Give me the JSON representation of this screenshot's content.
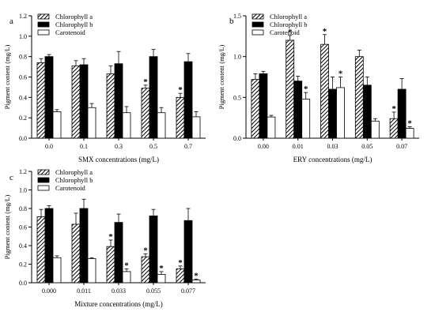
{
  "chart_data": [
    {
      "type": "bar",
      "panel_label": "a",
      "categories": [
        "0.0",
        "0.1",
        "0.3",
        "0.5",
        "0.7"
      ],
      "xlabel": "SMX concentrations (mg/L)",
      "ylabel": "Pigment content (mg/L)",
      "ylim": [
        0,
        1.2
      ],
      "yticks": [
        "0.0",
        "0.2",
        "0.4",
        "0.6",
        "0.8",
        "1.0",
        "1.2"
      ],
      "legend": "top-left",
      "series": [
        {
          "name": "Chlorophyll a",
          "pattern": "hatched",
          "values": [
            0.74,
            0.71,
            0.63,
            0.49,
            0.4
          ],
          "errors": [
            0.04,
            0.05,
            0.08,
            0.03,
            0.04
          ],
          "significant": [
            false,
            false,
            false,
            true,
            true
          ]
        },
        {
          "name": "Chlorophyll b",
          "pattern": "solid",
          "values": [
            0.8,
            0.72,
            0.73,
            0.8,
            0.75
          ],
          "errors": [
            0.02,
            0.06,
            0.12,
            0.07,
            0.08
          ],
          "significant": [
            false,
            false,
            false,
            false,
            false
          ]
        },
        {
          "name": "Carotenoid",
          "pattern": "open",
          "values": [
            0.26,
            0.3,
            0.25,
            0.25,
            0.21
          ],
          "errors": [
            0.02,
            0.04,
            0.06,
            0.05,
            0.05
          ],
          "significant": [
            false,
            false,
            false,
            false,
            false
          ]
        }
      ],
      "significance_marker": "*"
    },
    {
      "type": "bar",
      "panel_label": "b",
      "categories": [
        "0.00",
        "0.01",
        "0.03",
        "0.05",
        "0.07"
      ],
      "xlabel": "ERY concentrations (mg/L)",
      "ylabel": "Pigment content (mg/L)",
      "ylim": [
        0,
        1.5
      ],
      "yticks": [
        "0.0",
        "0.5",
        "1.0",
        "1.5"
      ],
      "legend": "top-left",
      "series": [
        {
          "name": "Chlorophyll a",
          "pattern": "hatched",
          "values": [
            0.72,
            1.2,
            1.15,
            1.0,
            0.24
          ],
          "errors": [
            0.07,
            0.06,
            0.12,
            0.08,
            0.08
          ],
          "significant": [
            false,
            true,
            true,
            false,
            true
          ]
        },
        {
          "name": "Chlorophyll b",
          "pattern": "solid",
          "values": [
            0.79,
            0.7,
            0.6,
            0.65,
            0.6
          ],
          "errors": [
            0.03,
            0.06,
            0.15,
            0.1,
            0.13
          ],
          "significant": [
            false,
            false,
            false,
            false,
            false
          ]
        },
        {
          "name": "Carotenoid",
          "pattern": "open",
          "values": [
            0.26,
            0.48,
            0.62,
            0.21,
            0.12
          ],
          "errors": [
            0.02,
            0.08,
            0.13,
            0.03,
            0.02
          ],
          "significant": [
            false,
            true,
            true,
            false,
            true
          ]
        }
      ],
      "significance_marker": "*"
    },
    {
      "type": "bar",
      "panel_label": "c",
      "categories": [
        "0.000",
        "0.011",
        "0.033",
        "0.055",
        "0.077"
      ],
      "xlabel": "Mixture concentrations (mg/L)",
      "ylabel": "Pigment content (mg/L)",
      "ylim": [
        0,
        1.2
      ],
      "yticks": [
        "0.0",
        "0.2",
        "0.4",
        "0.6",
        "0.8",
        "1.0",
        "1.2"
      ],
      "legend": "top-left",
      "series": [
        {
          "name": "Chlorophyll a",
          "pattern": "hatched",
          "values": [
            0.71,
            0.63,
            0.39,
            0.28,
            0.15
          ],
          "errors": [
            0.08,
            0.12,
            0.07,
            0.03,
            0.03
          ],
          "significant": [
            false,
            false,
            true,
            true,
            true
          ]
        },
        {
          "name": "Chlorophyll b",
          "pattern": "solid",
          "values": [
            0.8,
            0.8,
            0.65,
            0.72,
            0.67
          ],
          "errors": [
            0.03,
            0.1,
            0.09,
            0.07,
            0.13
          ],
          "significant": [
            false,
            false,
            false,
            false,
            false
          ]
        },
        {
          "name": "Carotenoid",
          "pattern": "open",
          "values": [
            0.27,
            0.26,
            0.12,
            0.09,
            0.03
          ],
          "errors": [
            0.02,
            0.01,
            0.03,
            0.03,
            0.01
          ],
          "significant": [
            false,
            false,
            true,
            true,
            true
          ]
        }
      ],
      "significance_marker": "*"
    }
  ]
}
